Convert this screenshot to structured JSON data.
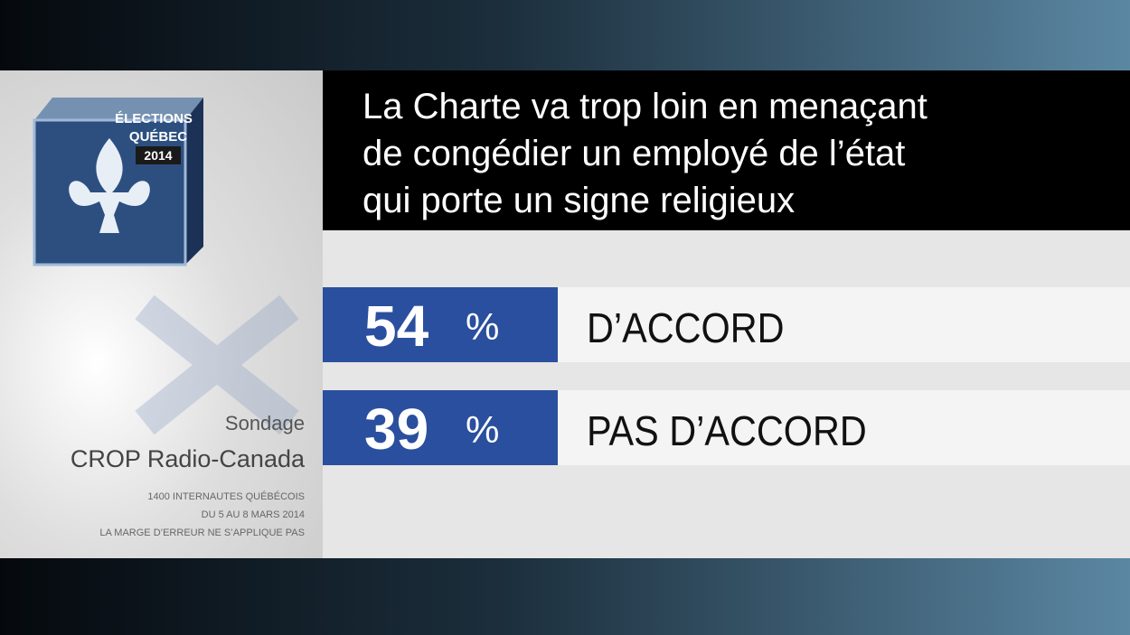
{
  "logo": {
    "line1": "ÉLECTIONS",
    "line2": "QUÉBEC",
    "year": "2014"
  },
  "source": {
    "label": "Sondage",
    "pollster": "CROP Radio-Canada",
    "notes": [
      "1400 INTERNAUTES QUÉBÉCOIS",
      "DU 5 AU 8 MARS 2014",
      "LA MARGE D’ERREUR NE S’APPLIQUE PAS"
    ]
  },
  "question": [
    "La Charte va trop loin en menaçant",
    "de congédier un employé de l’état",
    "qui porte un signe religieux"
  ],
  "results": [
    {
      "value": 54,
      "unit": "%",
      "label": "D’ACCORD"
    },
    {
      "value": 39,
      "unit": "%",
      "label": "PAS D’ACCORD"
    }
  ]
}
